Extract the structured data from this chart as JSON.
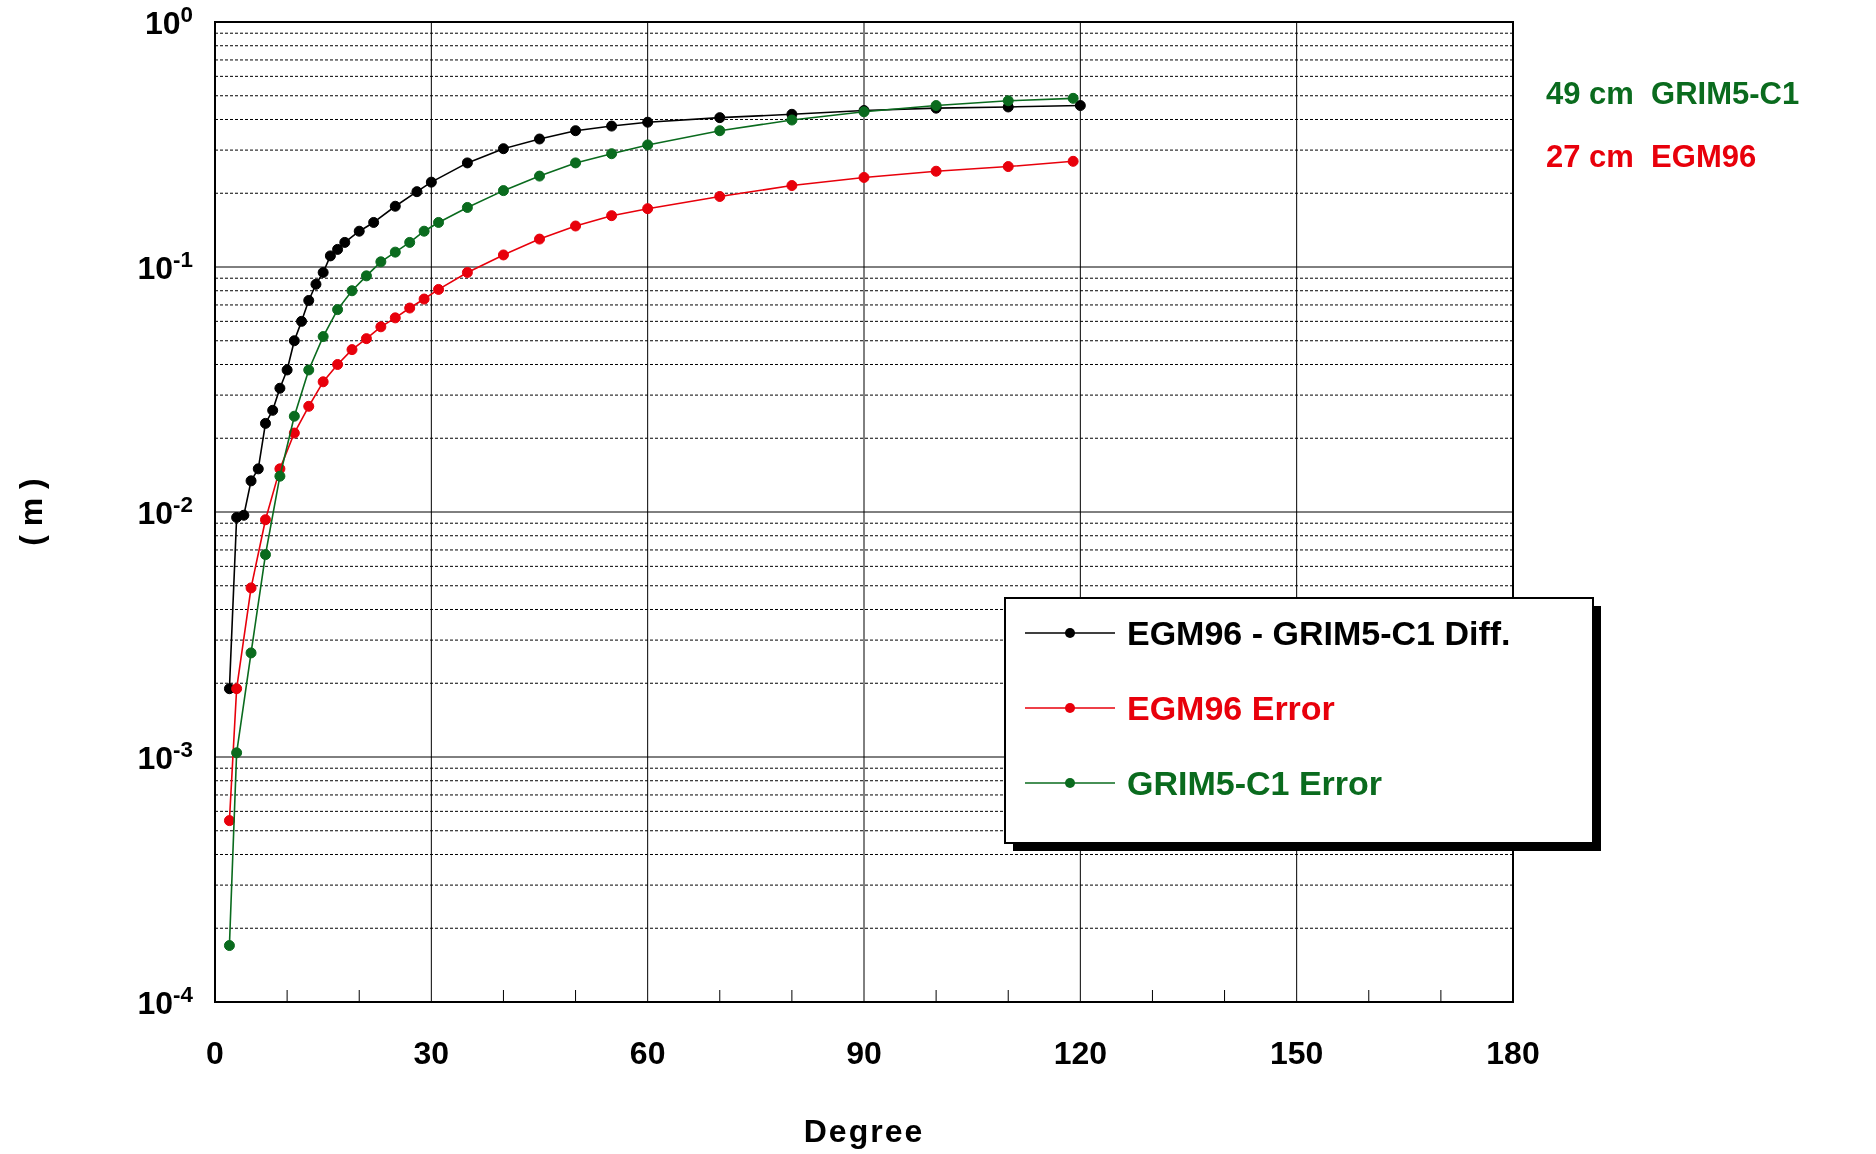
{
  "chart_data": {
    "type": "line",
    "xlabel": "Degree",
    "ylabel": "( m )",
    "log": "y",
    "grid": true,
    "marker": "circle",
    "legend": "right",
    "xlim": [
      0,
      180
    ],
    "xticks": [
      0,
      30,
      60,
      90,
      120,
      150,
      180
    ],
    "ylim": [
      0.0001,
      1
    ],
    "yticks": [
      {
        "value": 0.0001,
        "label": "10$^{-4}$"
      },
      {
        "value": 0.001,
        "label": "10$^{-3}$"
      },
      {
        "value": 0.01,
        "label": "10$^{-2}$"
      },
      {
        "value": 0.1,
        "label": "10$^{-1}$"
      },
      {
        "value": 1,
        "label": "10$^{0}$"
      }
    ],
    "series": [
      {
        "name": "EGM96 - GRIM5-C1 Diff.",
        "color": "#000000",
        "x": [
          2,
          3,
          4,
          5,
          6,
          7,
          8,
          9,
          10,
          11,
          12,
          13,
          14,
          15,
          16,
          17,
          18,
          20,
          22,
          25,
          28,
          30,
          35,
          40,
          45,
          50,
          55,
          60,
          70,
          80,
          90,
          100,
          110,
          120
        ],
        "values": [
          0.0019,
          0.0095,
          0.0097,
          0.0134,
          0.015,
          0.023,
          0.026,
          0.032,
          0.038,
          0.05,
          0.06,
          0.073,
          0.085,
          0.095,
          0.111,
          0.118,
          0.126,
          0.14,
          0.152,
          0.177,
          0.203,
          0.222,
          0.266,
          0.304,
          0.333,
          0.36,
          0.376,
          0.39,
          0.407,
          0.42,
          0.435,
          0.445,
          0.45,
          0.456
        ]
      },
      {
        "name": "EGM96 Error",
        "color": "#e8000b",
        "x": [
          2,
          3,
          5,
          7,
          9,
          11,
          13,
          15,
          17,
          19,
          21,
          23,
          25,
          27,
          29,
          31,
          35,
          40,
          45,
          50,
          55,
          60,
          70,
          80,
          90,
          100,
          110,
          119
        ],
        "values": [
          0.00055,
          0.0019,
          0.0049,
          0.0093,
          0.015,
          0.021,
          0.027,
          0.034,
          0.04,
          0.046,
          0.051,
          0.057,
          0.062,
          0.068,
          0.074,
          0.081,
          0.095,
          0.112,
          0.13,
          0.147,
          0.162,
          0.173,
          0.194,
          0.215,
          0.232,
          0.246,
          0.257,
          0.27
        ]
      },
      {
        "name": "GRIM5-C1 Error",
        "color": "#0a6b1e",
        "x": [
          2,
          3,
          5,
          7,
          9,
          11,
          13,
          15,
          17,
          19,
          21,
          23,
          25,
          27,
          29,
          31,
          35,
          40,
          45,
          50,
          55,
          60,
          70,
          80,
          90,
          100,
          110,
          119
        ],
        "values": [
          0.00017,
          0.00104,
          0.00266,
          0.0067,
          0.014,
          0.0246,
          0.038,
          0.052,
          0.067,
          0.08,
          0.092,
          0.105,
          0.115,
          0.126,
          0.14,
          0.152,
          0.175,
          0.205,
          0.235,
          0.266,
          0.29,
          0.315,
          0.36,
          0.398,
          0.43,
          0.456,
          0.477,
          0.488
        ]
      }
    ],
    "annotations": [
      "49 cm  GRIM5-C1",
      "27 cm  EGM96"
    ]
  }
}
